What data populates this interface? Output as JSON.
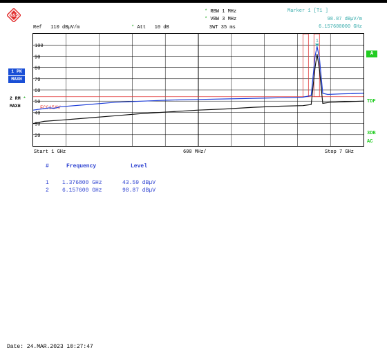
{
  "header": {
    "ref_label": "Ref",
    "ref_value": "110 dBµV/m",
    "att_label": "Att",
    "att_value": "10 dB",
    "rbw": "RBW 1 MHz",
    "vbw": "VBW 3 MHz",
    "swt": "SWT 35 ms",
    "marker_title": "Marker 1 [T1 ]",
    "marker_level": "98.87 dBµV/m",
    "marker_freq": "6.157600000 GHz"
  },
  "left_panel": {
    "trace1_box": "1 PK",
    "trace1_mode": "MAXH",
    "trace2_label": "2 RM",
    "trace2_mode": "MAXH"
  },
  "right_panel": {
    "a_box": "A",
    "tdf": "TDF",
    "db3": "3DB",
    "ac": "AC"
  },
  "chart_data": {
    "type": "line",
    "ylim": [
      10,
      110
    ],
    "y_ticks": [
      "100",
      "90",
      "80",
      "70",
      "60",
      "50",
      "40",
      "30",
      "20"
    ],
    "xlim_ghz": [
      1,
      7
    ],
    "x_start": "Start 1 GHz",
    "x_div": "600 MHz/",
    "x_stop": "Stop 7 GHz",
    "limit_line_label": "FCC15AV",
    "limit_line_level": 54,
    "marker_label": "1",
    "series": [
      {
        "trace": "1 PK",
        "color": "#1f3fd8",
        "x": [
          1.0,
          1.15,
          1.3,
          1.38,
          1.5,
          2.0,
          2.5,
          3.0,
          3.5,
          4.0,
          4.5,
          5.0,
          5.5,
          5.9,
          6.05,
          6.12,
          6.157,
          6.2,
          6.26,
          6.35,
          6.6,
          7.0
        ],
        "y": [
          42,
          43,
          44,
          43.6,
          45,
          47,
          49,
          50,
          51,
          51.5,
          52,
          52.5,
          53,
          53.5,
          55,
          90,
          98.87,
          88,
          57,
          56,
          56.5,
          57
        ]
      },
      {
        "trace": "2 RM",
        "color": "#111111",
        "x": [
          1.0,
          1.2,
          1.5,
          2.0,
          2.5,
          3.0,
          3.5,
          4.0,
          4.5,
          5.0,
          5.5,
          5.9,
          6.05,
          6.12,
          6.157,
          6.2,
          6.26,
          6.4,
          6.7,
          7.0
        ],
        "y": [
          30,
          32,
          33,
          35,
          37,
          39,
          40.5,
          42,
          43,
          44.5,
          45.5,
          46,
          47,
          80,
          92,
          78,
          48,
          49,
          49.5,
          50
        ]
      }
    ]
  },
  "marker_table": {
    "headers": [
      "#",
      "Frequency",
      "Level"
    ],
    "rows": [
      {
        "num": "1",
        "freq": "1.376800 GHz",
        "level": "43.59 dBµV"
      },
      {
        "num": "2",
        "freq": "6.157600 GHz",
        "level": "98.87 dBµV"
      }
    ]
  },
  "footer": {
    "date": "Date: 24.MAR.2023  10:27:47"
  }
}
